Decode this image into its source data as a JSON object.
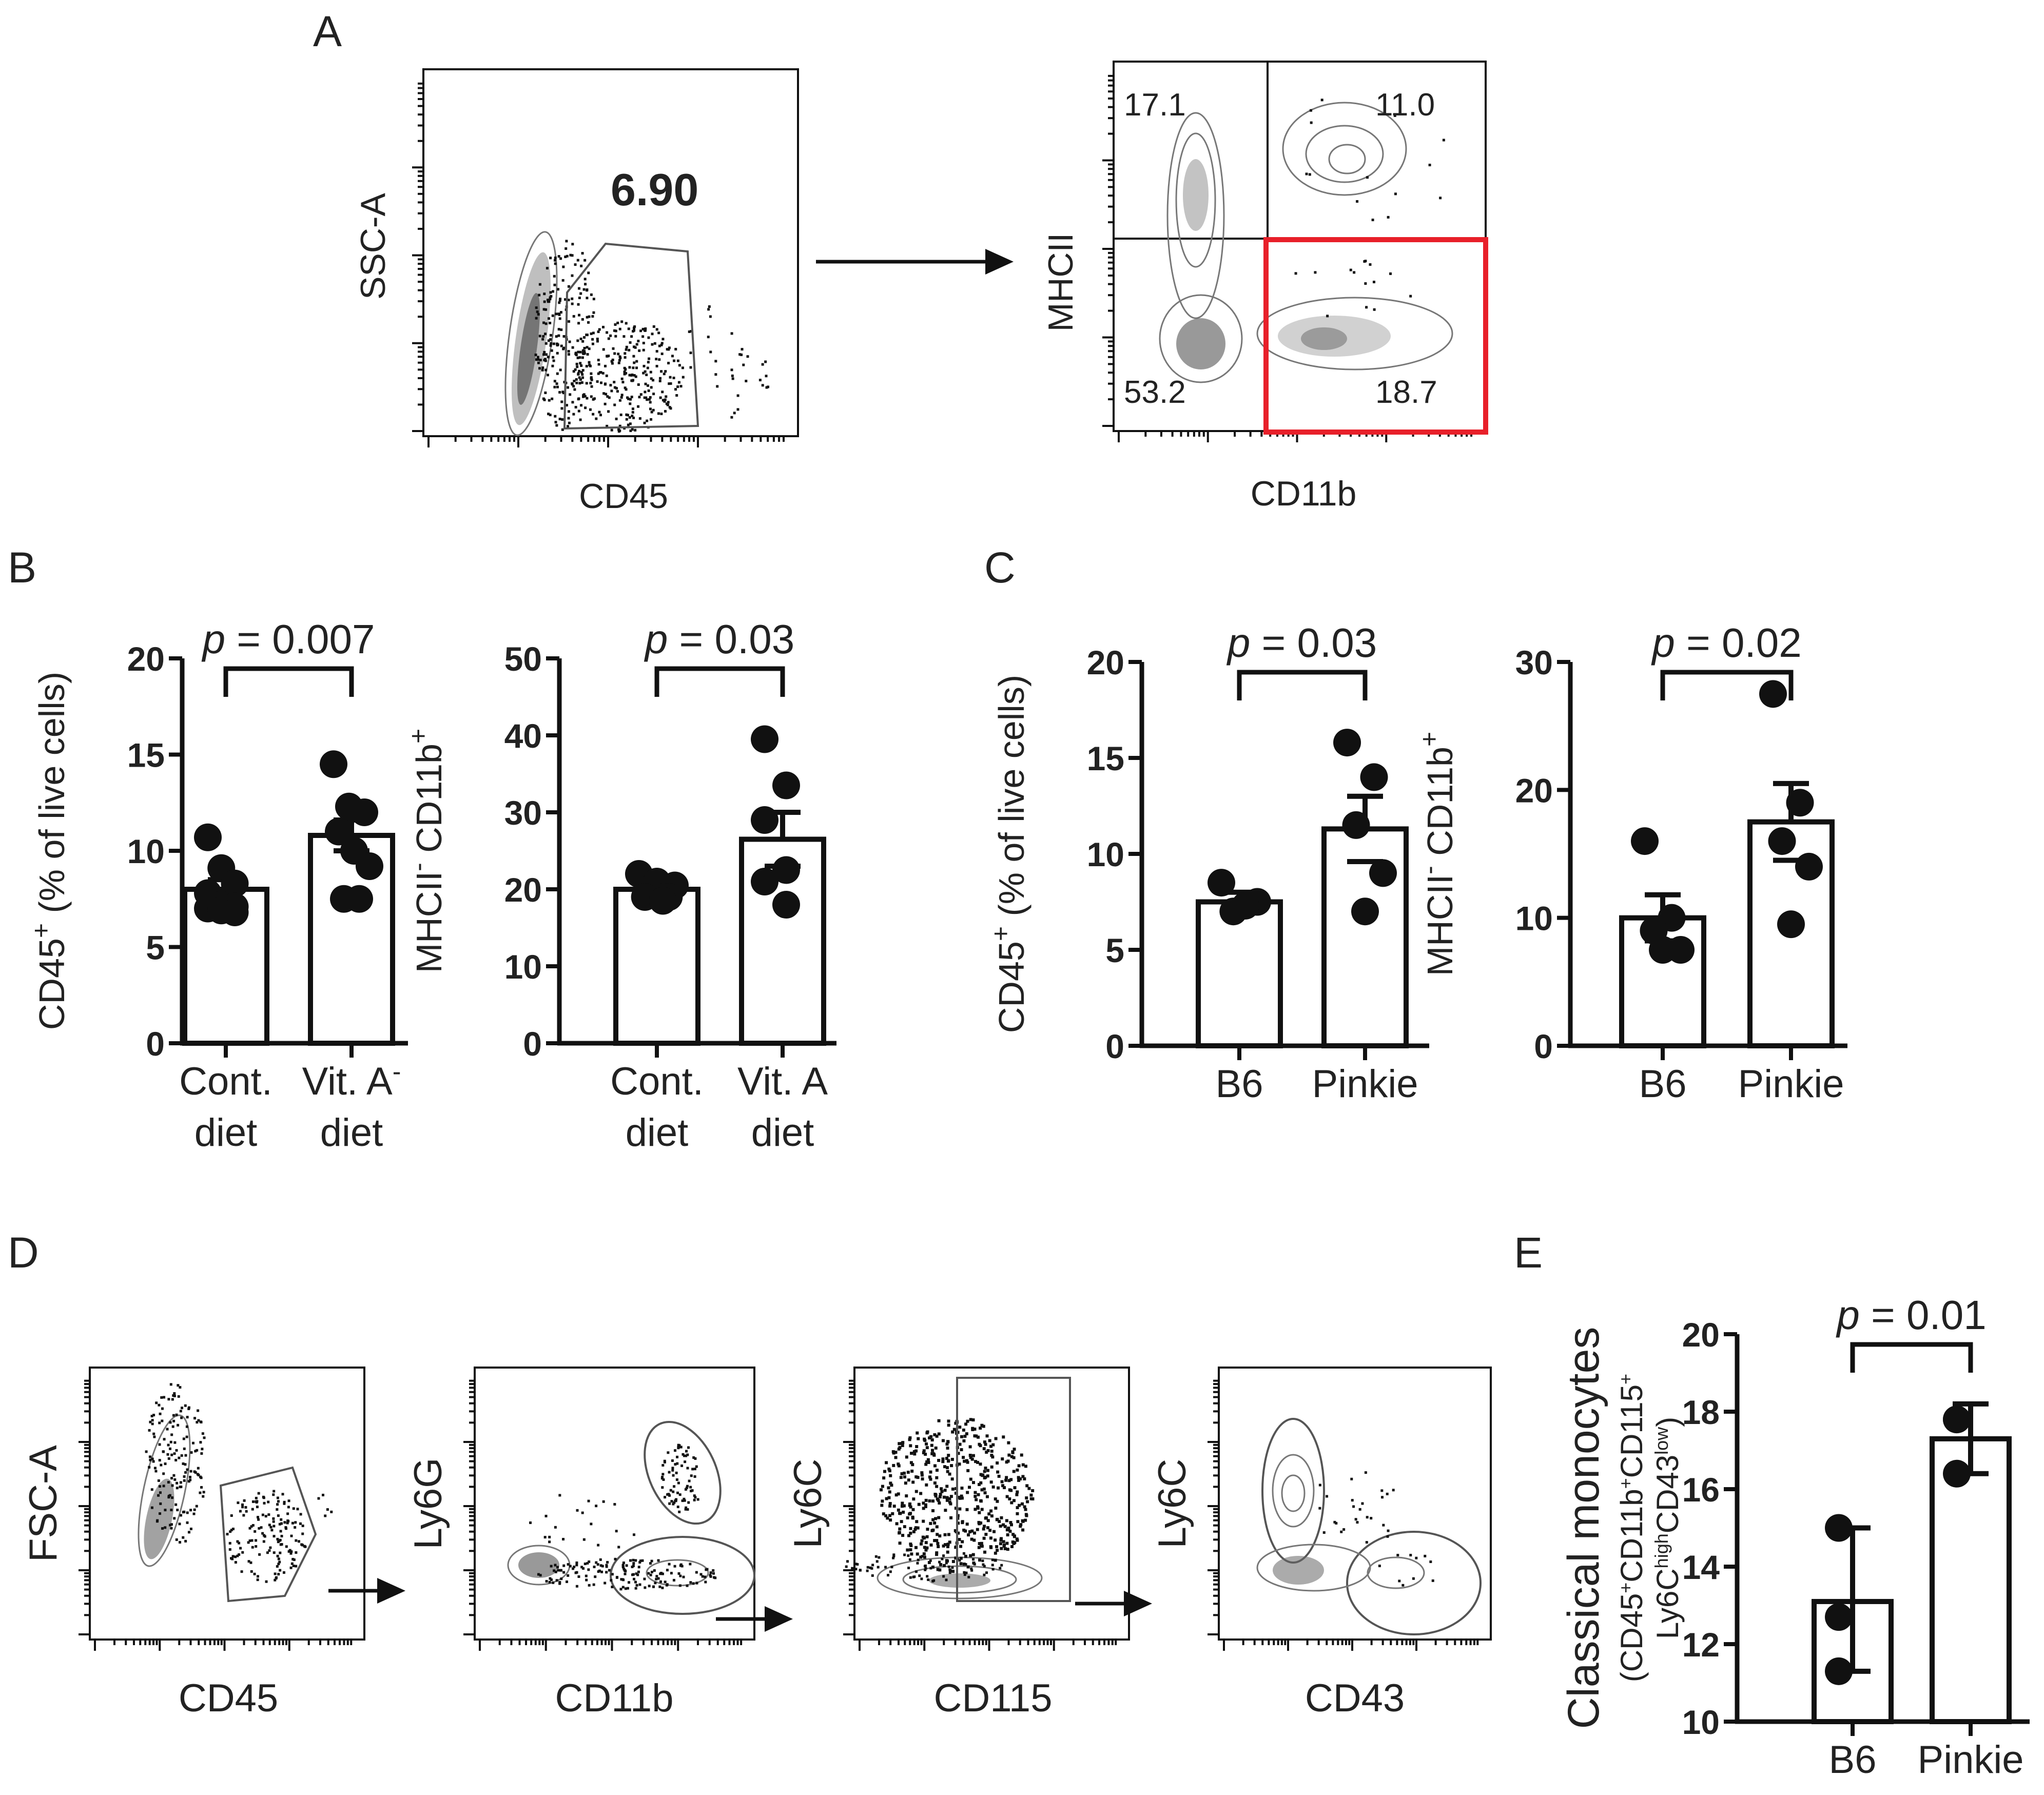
{
  "panels": {
    "A": {
      "label": "A",
      "plot1": {
        "xlabel": "CD45",
        "ylabel": "SSC-A",
        "gate_value": "6.90"
      },
      "plot2": {
        "xlabel": "CD11b",
        "ylabel": "MHCII",
        "quadrants": {
          "top_left": "17.1",
          "top_right": "11.0",
          "bottom_left": "53.2",
          "bottom_right": "18.7"
        },
        "highlight_color": "#e8202a"
      }
    },
    "B": {
      "label": "B"
    },
    "C": {
      "label": "C"
    },
    "D": {
      "label": "D",
      "plots": [
        {
          "xlabel": "CD45",
          "ylabel": "FSC-A"
        },
        {
          "xlabel": "CD11b",
          "ylabel": "Ly6G"
        },
        {
          "xlabel": "CD115",
          "ylabel": "Ly6C"
        },
        {
          "xlabel": "CD43",
          "ylabel": "Ly6C"
        }
      ]
    },
    "E": {
      "label": "E"
    }
  },
  "chart_data": [
    {
      "id": "B1",
      "type": "bar",
      "ylabel_main": "CD45",
      "ylabel_sup": "+",
      "ylabel_rest": " (% of live cells)",
      "ylim": [
        0,
        20
      ],
      "yticks": [
        "0",
        "5",
        "10",
        "15",
        "20"
      ],
      "ytick_values": [
        0,
        5,
        10,
        15,
        20
      ],
      "categories": [
        [
          "Cont.",
          "diet"
        ],
        [
          "Vit. A",
          "diet"
        ]
      ],
      "category_sup": [
        "",
        "-"
      ],
      "means": [
        8.0,
        10.8
      ],
      "sem": [
        0.5,
        0.8
      ],
      "points": [
        [
          10.7,
          9.1,
          8.3,
          7.8,
          7.2,
          7.1,
          7.0,
          6.9,
          6.8
        ],
        [
          14.5,
          12.3,
          12.0,
          11.0,
          10.0,
          9.2,
          7.5,
          7.5
        ]
      ],
      "p_label": "p",
      "p_value": "= 0.007"
    },
    {
      "id": "B2",
      "type": "bar",
      "ylabel_pre": "MHCII",
      "ylabel_pre_sup": "-",
      "ylabel_main": " CD11b",
      "ylabel_sup": "+",
      "ylim": [
        0,
        50
      ],
      "yticks": [
        "0",
        "10",
        "20",
        "30",
        "40",
        "50"
      ],
      "ytick_values": [
        0,
        10,
        20,
        30,
        40,
        50
      ],
      "categories": [
        [
          "Cont.",
          "diet"
        ],
        [
          "Vit. A",
          "diet"
        ]
      ],
      "category_sup": [
        "",
        ""
      ],
      "means": [
        20.0,
        26.5
      ],
      "sem": [
        0.6,
        3.5
      ],
      "points": [
        [
          22.0,
          21.0,
          20.5,
          19.5,
          19.0,
          19.0,
          18.5
        ],
        [
          39.5,
          33.5,
          29.0,
          22.5,
          21.0,
          18.0
        ]
      ],
      "p_label": "p",
      "p_value": "= 0.03"
    },
    {
      "id": "C1",
      "type": "bar",
      "ylabel_main": "CD45",
      "ylabel_sup": "+",
      "ylabel_rest": " (% of live cells)",
      "ylim": [
        0,
        20
      ],
      "yticks": [
        "0",
        "5",
        "10",
        "15",
        "20"
      ],
      "ytick_values": [
        0,
        5,
        10,
        15,
        20
      ],
      "categories": [
        [
          "B6"
        ],
        [
          "Pinkie"
        ]
      ],
      "category_sup": [
        "",
        ""
      ],
      "means": [
        7.5,
        11.3
      ],
      "sem": [
        0.5,
        1.7
      ],
      "points": [
        [
          8.5,
          7.5,
          7.3,
          7.0
        ],
        [
          15.8,
          14.0,
          11.5,
          9.0,
          7.0
        ]
      ],
      "p_label": "p",
      "p_value": "= 0.03"
    },
    {
      "id": "C2",
      "type": "bar",
      "ylabel_pre": "MHCII",
      "ylabel_pre_sup": "-",
      "ylabel_main": " CD11b",
      "ylabel_sup": "+",
      "ylim": [
        0,
        30
      ],
      "yticks": [
        "0",
        "10",
        "20",
        "30"
      ],
      "ytick_values": [
        0,
        10,
        20,
        30
      ],
      "categories": [
        [
          "B6"
        ],
        [
          "Pinkie"
        ]
      ],
      "category_sup": [
        "",
        ""
      ],
      "means": [
        10.0,
        17.5
      ],
      "sem": [
        1.8,
        3.0
      ],
      "points": [
        [
          16.0,
          10.0,
          9.0,
          7.5,
          7.5
        ],
        [
          27.5,
          19.0,
          16.0,
          14.0,
          9.5
        ]
      ],
      "p_label": "p",
      "p_value": "= 0.02"
    },
    {
      "id": "E",
      "type": "bar",
      "ylabel_line1": "Classical monocytes",
      "ylabel_line2_parts": [
        "(CD45",
        "+",
        "CD11b",
        "+",
        "CD115",
        "+"
      ],
      "ylabel_line3_parts": [
        "Ly6C",
        "high",
        "CD43",
        "low",
        ")"
      ],
      "ylim": [
        10,
        20
      ],
      "yticks": [
        "10",
        "12",
        "14",
        "16",
        "18",
        "20"
      ],
      "ytick_values": [
        10,
        12,
        14,
        16,
        18,
        20
      ],
      "categories": [
        [
          "B6"
        ],
        [
          "Pinkie"
        ]
      ],
      "category_sup": [
        "",
        ""
      ],
      "means": [
        13.1,
        17.3
      ],
      "err": [
        [
          11.3,
          15.0
        ],
        [
          16.4,
          18.2
        ]
      ],
      "points": [
        [
          15.0,
          12.7,
          11.3
        ],
        [
          17.8,
          17.8,
          16.4
        ]
      ],
      "p_label": "p",
      "p_value": "= 0.01"
    }
  ]
}
